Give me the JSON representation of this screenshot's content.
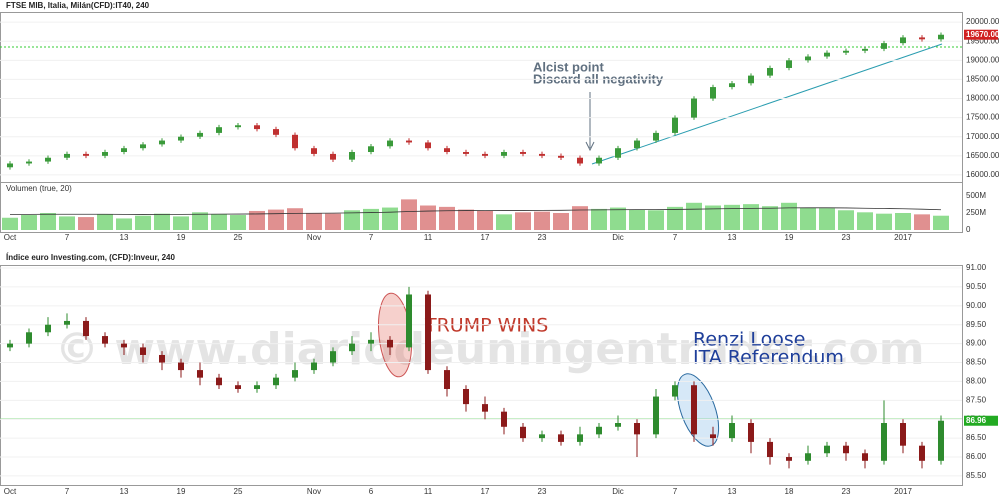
{
  "chart_data": [
    {
      "type": "candlestick",
      "title": "FTSE MIB, Italia, Milán(CFD):IT40, 240",
      "annotations": [
        "Alcist point",
        "Discard all negativity"
      ],
      "categories": [
        "Oct",
        null,
        null,
        "7",
        null,
        null,
        "13",
        null,
        null,
        "19",
        null,
        null,
        "25",
        null,
        null,
        null,
        "Nov",
        null,
        null,
        "7",
        null,
        null,
        "11",
        null,
        null,
        "17",
        null,
        null,
        "23",
        null,
        null,
        null,
        "Dic",
        null,
        null,
        "7",
        null,
        null,
        "13",
        null,
        null,
        "19",
        null,
        null,
        "23",
        null,
        null,
        "2017",
        null,
        null
      ],
      "open": [
        16200,
        16300,
        16350,
        16450,
        16550,
        16500,
        16600,
        16700,
        16800,
        16900,
        17000,
        17100,
        17250,
        17300,
        17200,
        17050,
        16700,
        16550,
        16400,
        16600,
        16750,
        16900,
        16850,
        16700,
        16600,
        16550,
        16500,
        16600,
        16550,
        16500,
        16450,
        16300,
        16450,
        16700,
        16900,
        17100,
        17500,
        18000,
        18300,
        18400,
        18600,
        18800,
        19000,
        19100,
        19200,
        19250,
        19300,
        19450,
        19600,
        19550
      ],
      "close": [
        16300,
        16350,
        16450,
        16550,
        16500,
        16600,
        16700,
        16800,
        16900,
        17000,
        17100,
        17250,
        17300,
        17200,
        17050,
        16700,
        16550,
        16400,
        16600,
        16750,
        16900,
        16850,
        16700,
        16600,
        16550,
        16500,
        16600,
        16550,
        16500,
        16450,
        16300,
        16450,
        16700,
        16900,
        17100,
        17500,
        18000,
        18300,
        18400,
        18600,
        18800,
        19000,
        19100,
        19200,
        19250,
        19300,
        19450,
        19600,
        19550,
        19670
      ],
      "high": [
        16360,
        16410,
        16510,
        16610,
        16610,
        16660,
        16760,
        16860,
        16960,
        17060,
        17160,
        17310,
        17360,
        17360,
        17260,
        17110,
        16760,
        16610,
        16660,
        16810,
        16960,
        16960,
        16910,
        16760,
        16660,
        16610,
        16660,
        16660,
        16610,
        16560,
        16510,
        16510,
        16760,
        16960,
        17160,
        17560,
        18060,
        18360,
        18460,
        18660,
        18860,
        19060,
        19160,
        19260,
        19310,
        19360,
        19510,
        19660,
        19660,
        19730
      ],
      "low": [
        16140,
        16240,
        16290,
        16390,
        16440,
        16440,
        16540,
        16640,
        16740,
        16840,
        16940,
        17040,
        17190,
        17140,
        16990,
        16640,
        16490,
        16340,
        16340,
        16540,
        16690,
        16790,
        16640,
        16540,
        16490,
        16440,
        16440,
        16490,
        16440,
        16390,
        16240,
        16240,
        16390,
        16640,
        16840,
        17040,
        17440,
        17940,
        18240,
        18340,
        18540,
        18740,
        18940,
        19040,
        19140,
        19190,
        19240,
        19390,
        19490,
        19490
      ],
      "up_color": "#3a9a3a",
      "down_color": "#c03030",
      "ylim": [
        15815,
        20265
      ],
      "yticks": [
        {
          "value": 16000,
          "label": "16000.00"
        },
        {
          "value": 16500,
          "label": "16500.00"
        },
        {
          "value": 17000,
          "label": "17000.00"
        },
        {
          "value": 17500,
          "label": "17500.00"
        },
        {
          "value": 18000,
          "label": "18000.00"
        },
        {
          "value": 18500,
          "label": "18500.00"
        },
        {
          "value": 19000,
          "label": "19000.00"
        },
        {
          "value": 19500,
          "label": "19500.00"
        },
        {
          "value": 20000,
          "label": "20000.00"
        }
      ],
      "last_price": {
        "value": 19670,
        "label": "19670.00",
        "color": "#d02020"
      },
      "volume": {
        "title": "Volumen (true, 20)",
        "up_color": "#8fdc8f",
        "down_color": "#e09090",
        "ma_color": "#333",
        "values": [
          180,
          220,
          250,
          200,
          190,
          230,
          170,
          210,
          240,
          200,
          260,
          230,
          220,
          280,
          300,
          320,
          250,
          240,
          290,
          310,
          330,
          450,
          360,
          340,
          300,
          280,
          230,
          260,
          270,
          250,
          350,
          310,
          330,
          300,
          290,
          340,
          400,
          360,
          370,
          380,
          350,
          400,
          330,
          320,
          290,
          260,
          240,
          250,
          230,
          210
        ],
        "ma": [
          230,
          230,
          232,
          232,
          231,
          231,
          230,
          229,
          230,
          230,
          232,
          233,
          234,
          236,
          240,
          244,
          246,
          248,
          252,
          256,
          262,
          272,
          278,
          283,
          286,
          288,
          286,
          286,
          288,
          289,
          294,
          296,
          298,
          300,
          300,
          302,
          306,
          310,
          314,
          318,
          320,
          325,
          326,
          326,
          324,
          320,
          316,
          312,
          306,
          298
        ],
        "ylim": [
          0,
          632
        ],
        "yticks": [
          0,
          {
            "value": 250,
            "label": "250M"
          },
          {
            "value": 500,
            "label": "500M"
          }
        ]
      }
    },
    {
      "type": "candlestick",
      "title": "Índice euro Investing.com, (CFD):Inveur, 240",
      "annotations": [
        "TRUMP WINS",
        "Renzi Loose",
        "ITA Referendum"
      ],
      "watermark": "© www.diariodeuningentrader.com",
      "categories": [
        "Oct",
        null,
        null,
        "7",
        null,
        null,
        "13",
        null,
        null,
        "19",
        null,
        null,
        "25",
        null,
        null,
        null,
        "Nov",
        null,
        null,
        "6",
        null,
        null,
        "11",
        null,
        null,
        "17",
        null,
        null,
        "23",
        null,
        null,
        null,
        "Dic",
        null,
        null,
        "7",
        null,
        null,
        "13",
        null,
        null,
        "18",
        null,
        null,
        "23",
        null,
        null,
        "2017",
        null,
        null
      ],
      "open": [
        88.9,
        89.0,
        89.3,
        89.5,
        89.6,
        89.2,
        89.0,
        88.9,
        88.7,
        88.5,
        88.3,
        88.1,
        87.9,
        87.8,
        87.9,
        88.1,
        88.3,
        88.5,
        88.8,
        89.0,
        89.1,
        88.9,
        90.3,
        88.3,
        87.8,
        87.4,
        87.2,
        86.8,
        86.5,
        86.6,
        86.4,
        86.6,
        86.8,
        86.9,
        86.6,
        87.6,
        87.9,
        86.6,
        86.5,
        86.9,
        86.4,
        86.0,
        85.9,
        86.1,
        86.3,
        86.1,
        85.9,
        86.9,
        86.3,
        85.9
      ],
      "close": [
        89.0,
        89.3,
        89.5,
        89.6,
        89.2,
        89.0,
        88.9,
        88.7,
        88.5,
        88.3,
        88.1,
        87.9,
        87.8,
        87.9,
        88.1,
        88.3,
        88.5,
        88.8,
        89.0,
        89.1,
        88.9,
        90.3,
        88.3,
        87.8,
        87.4,
        87.2,
        86.8,
        86.5,
        86.6,
        86.4,
        86.6,
        86.8,
        86.9,
        86.6,
        87.6,
        87.9,
        86.6,
        86.5,
        86.9,
        86.4,
        86.0,
        85.9,
        86.1,
        86.3,
        86.1,
        85.9,
        86.9,
        86.3,
        85.9,
        86.96
      ],
      "high": [
        89.1,
        89.4,
        89.7,
        89.8,
        89.7,
        89.3,
        89.1,
        89.0,
        88.8,
        88.6,
        88.5,
        88.2,
        88.0,
        88.0,
        88.2,
        88.5,
        88.6,
        88.9,
        89.2,
        89.3,
        89.2,
        90.5,
        90.4,
        88.4,
        87.9,
        87.6,
        87.3,
        86.9,
        86.7,
        86.7,
        86.8,
        86.9,
        87.1,
        87.0,
        87.8,
        88.0,
        88.0,
        86.8,
        87.1,
        87.0,
        86.5,
        86.1,
        86.3,
        86.4,
        86.4,
        86.2,
        87.5,
        87.0,
        86.4,
        87.1
      ],
      "low": [
        88.8,
        88.9,
        89.2,
        89.4,
        89.1,
        88.9,
        88.7,
        88.5,
        88.3,
        88.1,
        87.9,
        87.8,
        87.7,
        87.7,
        87.8,
        88.0,
        88.2,
        88.4,
        88.7,
        88.8,
        88.7,
        88.8,
        88.2,
        87.6,
        87.2,
        87.0,
        86.6,
        86.4,
        86.4,
        86.3,
        86.3,
        86.5,
        86.7,
        86.0,
        86.5,
        87.5,
        86.4,
        86.3,
        86.4,
        86.1,
        85.8,
        85.7,
        85.8,
        86.0,
        85.9,
        85.7,
        85.8,
        86.1,
        85.7,
        85.8
      ],
      "up_color": "#2e8b2e",
      "down_color": "#8b1a1a",
      "ylim": [
        85.26,
        91.08
      ],
      "yticks": [
        {
          "value": 85.5,
          "label": "85.50"
        },
        {
          "value": 86,
          "label": "86.00"
        },
        {
          "value": 86.5,
          "label": "86.50"
        },
        {
          "value": 87,
          "label": "87.00"
        },
        {
          "value": 87.5,
          "label": "87.50"
        },
        {
          "value": 88,
          "label": "88.00"
        },
        {
          "value": 88.5,
          "label": "88.50"
        },
        {
          "value": 89,
          "label": "89.00"
        },
        {
          "value": 89.5,
          "label": "89.50"
        },
        {
          "value": 90,
          "label": "90.00"
        },
        {
          "value": 90.5,
          "label": "90.50"
        },
        {
          "value": 91,
          "label": "91.00"
        }
      ],
      "last_price": {
        "value": 86.96,
        "label": "86.96",
        "color": "#22aa22"
      }
    }
  ]
}
